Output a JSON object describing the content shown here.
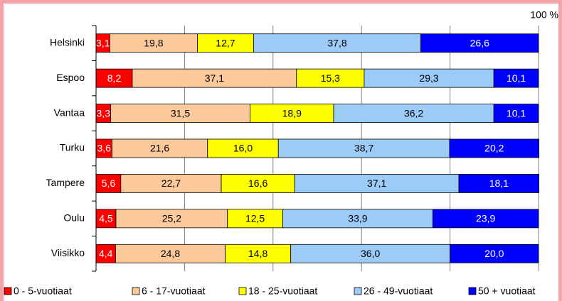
{
  "chart_data": {
    "type": "stacked-bar-horizontal",
    "categories": [
      "Helsinki",
      "Espoo",
      "Vantaa",
      "Turku",
      "Tampere",
      "Oulu",
      "Viisikko"
    ],
    "series": [
      {
        "name": "0 - 5-vuotiaat",
        "color": "#ff0000",
        "label_color": "#ffffff",
        "values": [
          3.1,
          8.2,
          3.3,
          3.6,
          5.6,
          4.5,
          4.4
        ],
        "value_labels": [
          "3,1",
          "8,2",
          "3,3",
          "3,6",
          "5,6",
          "4,5",
          "4,4"
        ]
      },
      {
        "name": "6 - 17-vuotiaat",
        "color": "#fcc99b",
        "label_color": "#000000",
        "values": [
          19.8,
          37.1,
          31.5,
          21.6,
          22.7,
          25.2,
          24.8
        ],
        "value_labels": [
          "19,8",
          "37,1",
          "31,5",
          "21,6",
          "22,7",
          "25,2",
          "24,8"
        ]
      },
      {
        "name": "18 - 25-vuotiaat",
        "color": "#ffff00",
        "label_color": "#000000",
        "values": [
          12.7,
          15.3,
          18.9,
          16.0,
          16.6,
          12.5,
          14.8
        ],
        "value_labels": [
          "12,7",
          "15,3",
          "18,9",
          "16,0",
          "16,6",
          "12,5",
          "14,8"
        ]
      },
      {
        "name": "26 - 49-vuotiaat",
        "color": "#9ccbf7",
        "label_color": "#000000",
        "values": [
          37.8,
          29.3,
          36.2,
          38.7,
          37.1,
          33.9,
          36.0
        ],
        "value_labels": [
          "37,8",
          "29,3",
          "36,2",
          "38,7",
          "37,1",
          "33,9",
          "36,0"
        ]
      },
      {
        "name": "50 + vuotiaat",
        "color": "#0000ff",
        "label_color": "#ffffff",
        "values": [
          26.6,
          10.1,
          10.1,
          20.2,
          18.1,
          23.9,
          20.0
        ],
        "value_labels": [
          "26,6",
          "10,1",
          "10,1",
          "20,2",
          "18,1",
          "23,9",
          "20,0"
        ]
      }
    ],
    "xlim": [
      0,
      100
    ],
    "xticks": [
      {
        "value": 0,
        "label": null
      },
      {
        "value": 20,
        "label": null
      },
      {
        "value": 40,
        "label": null
      },
      {
        "value": 60,
        "label": null
      },
      {
        "value": 80,
        "label": null
      },
      {
        "value": 100,
        "label": "100 %"
      }
    ],
    "grid": true,
    "legend": "bottom"
  }
}
